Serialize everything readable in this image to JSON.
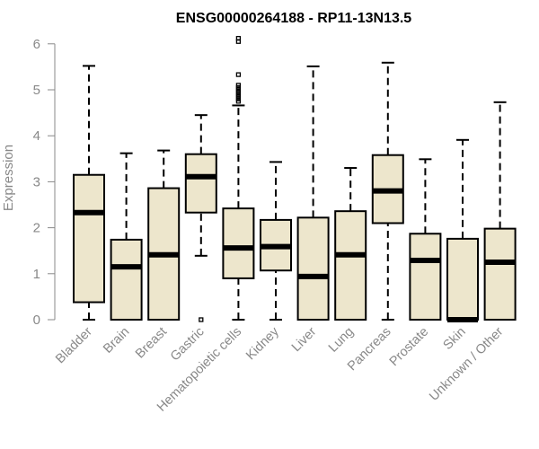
{
  "chart_data": {
    "type": "boxplot",
    "title": "ENSG00000264188 - RP11-13N13.5",
    "xlabel": "",
    "ylabel": "Expression",
    "ylim": [
      0,
      6.2
    ],
    "yticks": [
      0,
      1,
      2,
      3,
      4,
      5,
      6
    ],
    "grid": false,
    "colors": {
      "box_fill": "#ede6cc",
      "line": "#000000",
      "axis": "#888888"
    },
    "categories": [
      "Bladder",
      "Brain",
      "Breast",
      "Gastric",
      "Hematopoietic cells",
      "Kidney",
      "Liver",
      "Lung",
      "Pancreas",
      "Prostate",
      "Skin",
      "Unknown / Other"
    ],
    "boxes": [
      {
        "name": "Bladder",
        "min": 0.0,
        "q1": 0.38,
        "median": 2.33,
        "q3": 3.15,
        "max": 5.52,
        "outliers": []
      },
      {
        "name": "Brain",
        "min": 0.0,
        "q1": 0.0,
        "median": 1.15,
        "q3": 1.74,
        "max": 3.62,
        "outliers": []
      },
      {
        "name": "Breast",
        "min": 0.0,
        "q1": 0.0,
        "median": 1.41,
        "q3": 2.86,
        "max": 3.68,
        "outliers": []
      },
      {
        "name": "Gastric",
        "min": 1.39,
        "q1": 2.33,
        "median": 3.11,
        "q3": 3.6,
        "max": 4.45,
        "outliers": [
          0.0
        ]
      },
      {
        "name": "Hematopoietic cells",
        "min": 0.0,
        "q1": 0.9,
        "median": 1.56,
        "q3": 2.42,
        "max": 4.66,
        "outliers": [
          4.75,
          4.8,
          4.85,
          4.9,
          4.95,
          5.0,
          5.05,
          5.1,
          5.33,
          6.05,
          6.12
        ]
      },
      {
        "name": "Kidney",
        "min": 0.0,
        "q1": 1.07,
        "median": 1.59,
        "q3": 2.17,
        "max": 3.43,
        "outliers": []
      },
      {
        "name": "Liver",
        "min": 0.0,
        "q1": 0.0,
        "median": 0.94,
        "q3": 2.22,
        "max": 5.51,
        "outliers": []
      },
      {
        "name": "Lung",
        "min": 0.0,
        "q1": 0.0,
        "median": 1.41,
        "q3": 2.36,
        "max": 3.3,
        "outliers": []
      },
      {
        "name": "Pancreas",
        "min": 0.0,
        "q1": 2.1,
        "median": 2.8,
        "q3": 3.58,
        "max": 5.59,
        "outliers": []
      },
      {
        "name": "Prostate",
        "min": 0.0,
        "q1": 0.0,
        "median": 1.29,
        "q3": 1.87,
        "max": 3.49,
        "outliers": []
      },
      {
        "name": "Skin",
        "min": 0.0,
        "q1": 0.0,
        "median": 0.0,
        "q3": 1.76,
        "max": 3.91,
        "outliers": []
      },
      {
        "name": "Unknown / Other",
        "min": 0.0,
        "q1": 0.0,
        "median": 1.25,
        "q3": 1.98,
        "max": 4.73,
        "outliers": []
      }
    ]
  }
}
